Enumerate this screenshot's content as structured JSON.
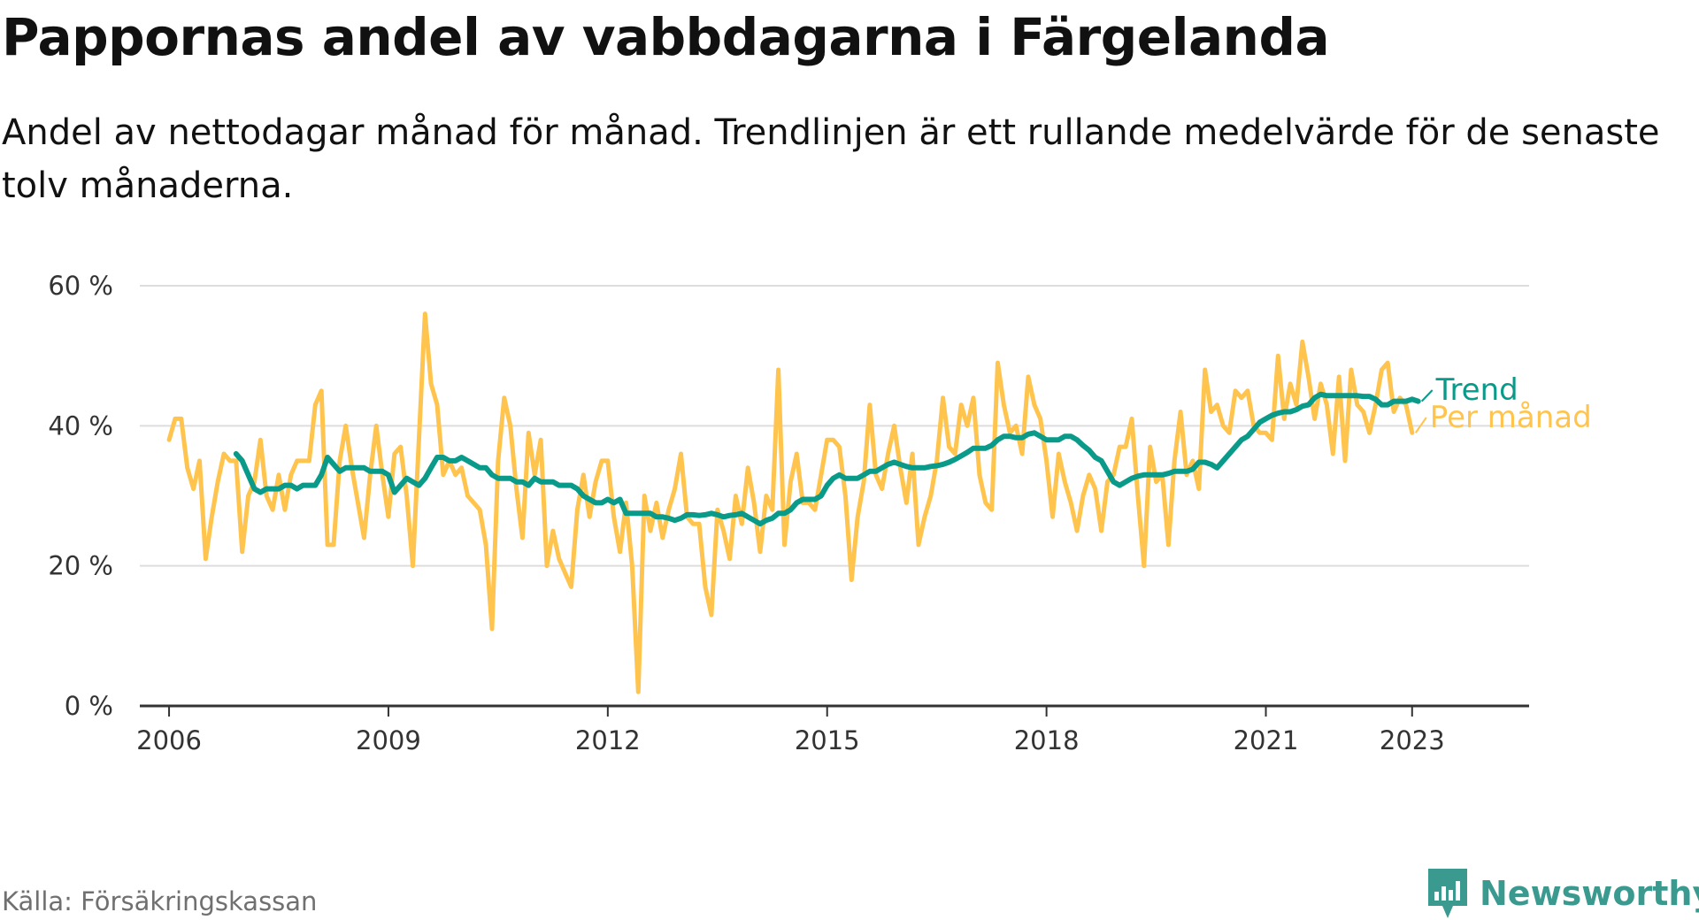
{
  "title": "Pappornas andel av vabbdagarna i Färgelanda",
  "subtitle": "Andel av nettodagar månad för månad. Trendlinjen är ett rullande medelvärde för de senaste tolv månaderna.",
  "source": "Källa: Försäkringskassan",
  "brand": {
    "name": "Newsworthy",
    "icon": "newsworthy-logo-icon"
  },
  "colors": {
    "trend": "#0a9a8a",
    "monthly": "#ffc44d",
    "grid": "#dddddd",
    "axis": "#333333"
  },
  "chart_data": {
    "type": "line",
    "title": "Pappornas andel av vabbdagarna i Färgelanda",
    "xlabel": "",
    "ylabel": "",
    "xlim": [
      2005.6,
      2024.6
    ],
    "ylim": [
      0,
      60
    ],
    "x_ticks": [
      {
        "value": 2006,
        "label": "2006"
      },
      {
        "value": 2009,
        "label": "2009"
      },
      {
        "value": 2012,
        "label": "2012"
      },
      {
        "value": 2015,
        "label": "2015"
      },
      {
        "value": 2018,
        "label": "2018"
      },
      {
        "value": 2021,
        "label": "2021"
      },
      {
        "value": 2023,
        "label": "2023"
      }
    ],
    "y_ticks": [
      {
        "value": 0,
        "label": "0 %"
      },
      {
        "value": 20,
        "label": "20 %"
      },
      {
        "value": 40,
        "label": "40 %"
      },
      {
        "value": 60,
        "label": "60 %"
      }
    ],
    "grid": true,
    "legend": "direct labels at line ends (right)",
    "x_start": "2006-01",
    "x_step": "month",
    "series": [
      {
        "name": "Per månad",
        "color": "#ffc44d",
        "start": "2006-01",
        "values": [
          38,
          41,
          41,
          34,
          31,
          35,
          21,
          27,
          32,
          36,
          35,
          35,
          22,
          30,
          32,
          38,
          30,
          28,
          33,
          28,
          33,
          35,
          35,
          35,
          43,
          45,
          23,
          23,
          35,
          40,
          34,
          29,
          24,
          33,
          40,
          33,
          27,
          36,
          37,
          30,
          20,
          38,
          56,
          46,
          43,
          33,
          35,
          33,
          34,
          30,
          29,
          28,
          23,
          11,
          35,
          44,
          40,
          31,
          24,
          39,
          33,
          38,
          20,
          25,
          21,
          19,
          17,
          28,
          33,
          27,
          32,
          35,
          35,
          27,
          22,
          29,
          20,
          2,
          30,
          25,
          29,
          24,
          28,
          31,
          36,
          27,
          26,
          26,
          17,
          13,
          28,
          25,
          21,
          30,
          26,
          34,
          29,
          22,
          30,
          28,
          48,
          23,
          32,
          36,
          29,
          29,
          28,
          33,
          38,
          38,
          37,
          30,
          18,
          27,
          32,
          43,
          33,
          31,
          36,
          40,
          34,
          29,
          36,
          23,
          27,
          30,
          35,
          44,
          37,
          36,
          43,
          40,
          44,
          33,
          29,
          28,
          49,
          43,
          39,
          40,
          36,
          47,
          43,
          41,
          35,
          27,
          36,
          32,
          29,
          25,
          30,
          33,
          31,
          25,
          32,
          33,
          37,
          37,
          41,
          30,
          20,
          37,
          32,
          33,
          23,
          35,
          42,
          33,
          35,
          31,
          48,
          42,
          43,
          40,
          39,
          45,
          44,
          45,
          40,
          39,
          39,
          38,
          50,
          41,
          46,
          43,
          52,
          47,
          41,
          46,
          43,
          36,
          47,
          35,
          48,
          43,
          42,
          39,
          43,
          48,
          49,
          42,
          44,
          43,
          39
        ]
      },
      {
        "name": "Trend",
        "color": "#0a9a8a",
        "start": "2006-12",
        "values": [
          36,
          35,
          33,
          31,
          30.5,
          31,
          31,
          31,
          31.5,
          31.5,
          31,
          31.5,
          31.5,
          31.5,
          33,
          35.5,
          34.5,
          33.5,
          34,
          34,
          34,
          34,
          33.5,
          33.5,
          33.5,
          33,
          30.5,
          31.5,
          32.5,
          32,
          31.5,
          32.5,
          34,
          35.5,
          35.5,
          35,
          35,
          35.5,
          35,
          34.5,
          34,
          34,
          33,
          32.5,
          32.5,
          32.5,
          32,
          32,
          31.5,
          32.5,
          32,
          32,
          32,
          31.5,
          31.5,
          31.5,
          31,
          30,
          29.5,
          29,
          29,
          29.5,
          29,
          29.5,
          27.5,
          27.5,
          27.5,
          27.5,
          27.5,
          27,
          27,
          26.8,
          26.5,
          26.8,
          27.3,
          27.3,
          27.2,
          27.3,
          27.5,
          27.3,
          27,
          27.2,
          27.3,
          27.5,
          27,
          26.5,
          26,
          26.5,
          26.8,
          27.5,
          27.5,
          28,
          29,
          29.5,
          29.5,
          29.5,
          30,
          31.5,
          32.5,
          33,
          32.5,
          32.5,
          32.5,
          33,
          33.5,
          33.5,
          34,
          34.5,
          34.8,
          34.5,
          34.2,
          34,
          34,
          34,
          34.2,
          34.3,
          34.5,
          34.8,
          35.2,
          35.7,
          36.2,
          36.8,
          36.8,
          36.8,
          37.2,
          38,
          38.5,
          38.5,
          38.3,
          38.3,
          38.8,
          39,
          38.5,
          38,
          38,
          38,
          38.5,
          38.5,
          38,
          37.2,
          36.5,
          35.5,
          35,
          33.5,
          32,
          31.5,
          32,
          32.5,
          32.8,
          33,
          33,
          33,
          33,
          33.2,
          33.5,
          33.5,
          33.5,
          33.8,
          34.8,
          34.8,
          34.5,
          34,
          35,
          36,
          37,
          38,
          38.5,
          39.5,
          40.5,
          41,
          41.5,
          41.8,
          42,
          42,
          42.3,
          42.8,
          43,
          44,
          44.5,
          44.3,
          44.3,
          44.3,
          44.3,
          44.3,
          44.3,
          44.2,
          44.2,
          43.8,
          43,
          43,
          43.5,
          43.5,
          43.5,
          43.8,
          43.5
        ]
      }
    ]
  }
}
